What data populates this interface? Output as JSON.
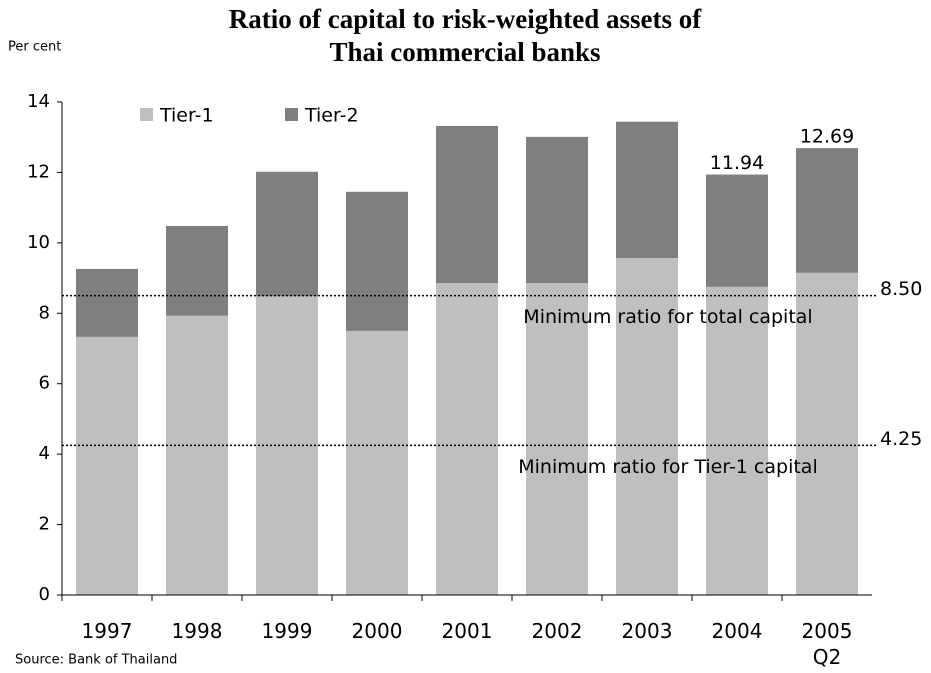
{
  "chart_data": {
    "type": "stacked_bar",
    "title": "Ratio of capital to risk-weighted assets of",
    "title_line2": "Thai commercial banks",
    "y_axis_label": "Per cent",
    "source": "Source:  Bank of Thailand",
    "categories": [
      "1997",
      "1998",
      "1999",
      "2000",
      "2001",
      "2002",
      "2003",
      "2004",
      "2005\nQ2"
    ],
    "series": [
      {
        "name": "Tier-1",
        "color": "#bfbfbf",
        "values": [
          7.33,
          7.93,
          8.49,
          7.5,
          8.86,
          8.86,
          9.57,
          8.75,
          9.15
        ]
      },
      {
        "name": "Tier-2",
        "color": "#7f7f7f",
        "values": [
          1.93,
          2.55,
          3.53,
          3.95,
          4.46,
          4.15,
          3.87,
          3.19,
          3.54
        ]
      }
    ],
    "total_labels": [
      null,
      null,
      null,
      null,
      null,
      null,
      null,
      "11.94",
      "12.69"
    ],
    "reference_lines": [
      {
        "value": 8.5,
        "label": "8.50",
        "text": "Minimum ratio for total capital"
      },
      {
        "value": 4.25,
        "label": "4.25",
        "text": "Minimum ratio for Tier-1 capital"
      }
    ],
    "ylim": [
      0,
      14
    ],
    "yticks": [
      0,
      2,
      4,
      6,
      8,
      10,
      12,
      14
    ],
    "legend": "top-left"
  }
}
